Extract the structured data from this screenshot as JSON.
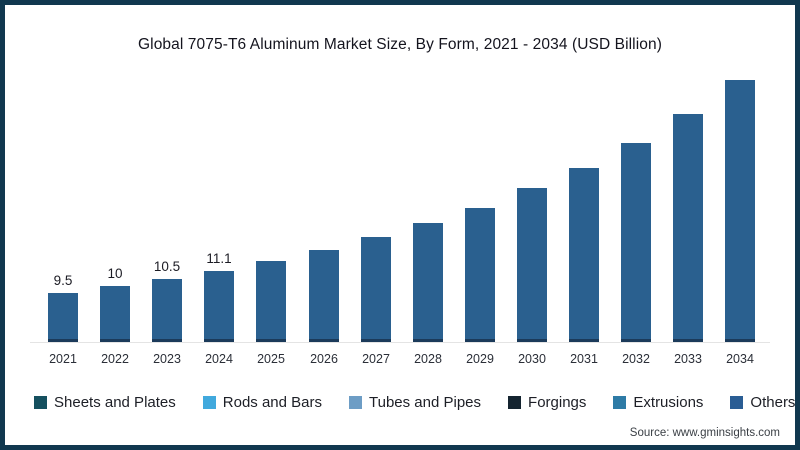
{
  "source": {
    "text": "Source: www.gminsights.com"
  },
  "colors": {
    "frame_border": "#11384f",
    "bar_fill": "#2a608f",
    "bar_base_edge": "#1b3a5a",
    "axis_line": "#e4e4e4"
  },
  "chart_data": {
    "type": "bar",
    "title": "Global 7075-T6 Aluminum Market Size, By Form, 2021 - 2034 (USD Billion)",
    "xlabel": "",
    "ylabel": "",
    "categories": [
      "2021",
      "2022",
      "2023",
      "2024",
      "2025",
      "2026",
      "2027",
      "2028",
      "2029",
      "2030",
      "2031",
      "2032",
      "2033",
      "2034"
    ],
    "values": [
      9.5,
      10,
      10.5,
      11.1,
      11.8,
      12.6,
      13.5,
      14.5,
      15.6,
      17.0,
      18.4,
      20.2,
      22.3,
      24.7
    ],
    "data_labels": [
      "9.5",
      "10",
      "10.5",
      "11.1",
      "",
      "",
      "",
      "",
      "",
      "",
      "",
      "",
      "",
      ""
    ],
    "ylim": [
      6,
      26
    ],
    "grid": false,
    "legend_position": "bottom",
    "legend": [
      {
        "label": "Sheets and Plates",
        "color": "#15505f"
      },
      {
        "label": "Rods and Bars",
        "color": "#41a9dd"
      },
      {
        "label": "Tubes and Pipes",
        "color": "#6d9dc5"
      },
      {
        "label": "Forgings",
        "color": "#142430"
      },
      {
        "label": "Extrusions",
        "color": "#2e7ba6"
      },
      {
        "label": "Others",
        "color": "#2a5d94"
      }
    ]
  }
}
